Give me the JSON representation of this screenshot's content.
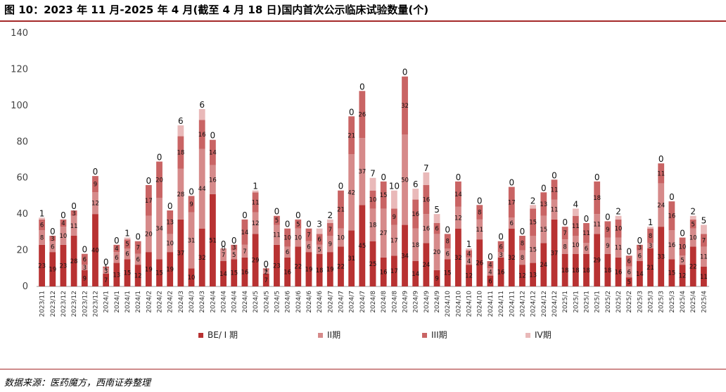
{
  "title": "图 10：2023 年 11 月-2025 年 4 月(截至 4 月 18 日)国内首次公示临床试验数量(个)",
  "source": "数据来源：医药魔方，西南证券整理",
  "chart_data": {
    "type": "bar",
    "stacked": true,
    "ylim": [
      0,
      140
    ],
    "yticks": [
      0,
      20,
      40,
      60,
      80,
      100,
      120,
      140
    ],
    "legend_position": "bottom",
    "categories": [
      "2023/11",
      "2023/12",
      "2023/12",
      "2023/12",
      "2023/12",
      "2023/12",
      "2024/1",
      "2024/1",
      "2024/1",
      "2024/1",
      "2024/2",
      "2024/2",
      "2024/2",
      "2024/3",
      "2024/3",
      "2024/3",
      "2024/4",
      "2024/4",
      "2024/4",
      "2024/4",
      "2024/5",
      "2024/5",
      "2024/5",
      "2024/6",
      "2024/6",
      "2024/6",
      "2024/6",
      "2024/7",
      "2024/7",
      "2024/7",
      "2024/7",
      "2024/8",
      "2024/8",
      "2024/8",
      "2024/9",
      "2024/9",
      "2024/9",
      "2024/9",
      "2024/10",
      "2024/10",
      "2024/10",
      "2024/10",
      "2024/11",
      "2024/11",
      "2024/11",
      "2024/12",
      "2024/12",
      "2024/12",
      "2024/12",
      "2025/1",
      "2025/1",
      "2025/1",
      "2025/1",
      "2025/2",
      "2025/2",
      "2025/2",
      "2025/3",
      "2025/3",
      "2025/3",
      "2025/3",
      "2025/4",
      "2025/4",
      "2025/4"
    ],
    "series": [
      {
        "name": "BE/ I 期",
        "color": "#b83232",
        "values": [
          23,
          19,
          23,
          28,
          9,
          40,
          7,
          13,
          15,
          12,
          19,
          15,
          19,
          37,
          10,
          32,
          51,
          14,
          15,
          16,
          29,
          7,
          23,
          16,
          22,
          19,
          18,
          19,
          22,
          31,
          45,
          25,
          16,
          17,
          34,
          14,
          24,
          9,
          15,
          32,
          12,
          26,
          6,
          16,
          32,
          12,
          13,
          24,
          37,
          18,
          18,
          18,
          29,
          18,
          16,
          5,
          14,
          21,
          33,
          15,
          12,
          22,
          11
        ]
      },
      {
        "name": "II期",
        "color": "#d68a8a",
        "values": [
          8,
          6,
          10,
          11,
          3,
          12,
          3,
          6,
          6,
          6,
          20,
          34,
          10,
          28,
          31,
          44,
          16,
          7,
          5,
          7,
          12,
          2,
          11,
          6,
          10,
          6,
          5,
          9,
          10,
          42,
          37,
          18,
          27,
          17,
          50,
          18,
          16,
          20,
          6,
          12,
          4,
          11,
          4,
          3,
          6,
          8,
          15,
          15,
          11,
          8,
          10,
          6,
          11,
          9,
          11,
          6,
          6,
          3,
          24,
          16,
          5,
          10,
          11
        ]
      },
      {
        "name": "III期",
        "color": "#c96464",
        "values": [
          6,
          3,
          4,
          3,
          6,
          9,
          1,
          4,
          5,
          7,
          17,
          20,
          13,
          18,
          9,
          16,
          14,
          0,
          3,
          14,
          11,
          1,
          5,
          10,
          5,
          7,
          6,
          7,
          21,
          21,
          26,
          10,
          15,
          9,
          32,
          16,
          16,
          6,
          8,
          14,
          4,
          8,
          4,
          6,
          17,
          8,
          15,
          13,
          11,
          7,
          11,
          11,
          18,
          9,
          10,
          6,
          3,
          8,
          11,
          16,
          10,
          5,
          7
        ]
      },
      {
        "name": "IV期",
        "color": "#e9b9b9",
        "values": [
          1,
          0,
          0,
          0,
          0,
          0,
          0,
          0,
          1,
          0,
          0,
          0,
          0,
          6,
          0,
          6,
          0,
          0,
          0,
          0,
          1,
          0,
          0,
          0,
          0,
          0,
          3,
          2,
          0,
          0,
          0,
          7,
          0,
          10,
          0,
          6,
          7,
          5,
          0,
          0,
          1,
          0,
          0,
          0,
          0,
          0,
          2,
          0,
          0,
          0,
          4,
          0,
          0,
          0,
          2,
          0,
          0,
          1,
          0,
          0,
          0,
          2,
          5
        ]
      }
    ],
    "x_labels": [
      "2023/11",
      "2023/12",
      "2023/12",
      "2023/12",
      "2023/12",
      "2023/12",
      "2024/1",
      "2024/1",
      "2024/1",
      "2024/1",
      "2024/2",
      "2024/2",
      "2024/2",
      "2024/3",
      "2024/3",
      "2024/3",
      "2024/4",
      "2024/4",
      "2024/4",
      "2024/4",
      "2024/5",
      "2024/5",
      "2024/5",
      "2024/6",
      "2024/6",
      "2024/6",
      "2024/6",
      "2024/7",
      "2024/7",
      "2024/7",
      "2024/7",
      "2024/8",
      "2024/8",
      "2024/8",
      "2024/9",
      "2024/9",
      "2024/9",
      "2024/9",
      "2024/10",
      "2024/10",
      "2024/10",
      "2024/10",
      "2024/11",
      "2024/11",
      "2024/11",
      "2024/12",
      "2024/12",
      "2024/12",
      "2024/12",
      "2025/1",
      "2025/1",
      "2025/1",
      "2025/1",
      "2025/2",
      "2025/2",
      "2025/2",
      "2025/3",
      "2025/3",
      "2025/3",
      "2025/3",
      "2025/4",
      "2025/4",
      "2025/4"
    ]
  }
}
